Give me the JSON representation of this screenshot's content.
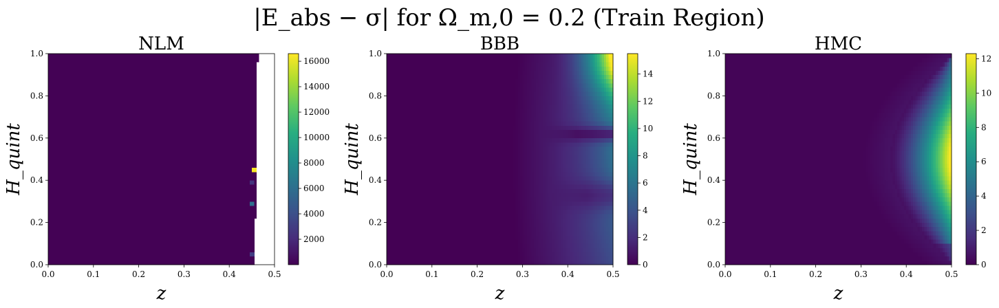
{
  "figure": {
    "title": "|E_abs − σ| for Ω_m,0 = 0.2 (Train Region)",
    "colormap": "viridis",
    "colormap_stops": [
      "#440154",
      "#3b528b",
      "#21918c",
      "#5ec962",
      "#fde725"
    ]
  },
  "chart_data": [
    {
      "type": "heatmap",
      "title": "NLM",
      "xlabel": "z",
      "ylabel": "H_quint",
      "xlim": [
        0,
        0.5
      ],
      "ylim": [
        0,
        1.0
      ],
      "xticks": [
        "0.0",
        "0.1",
        "0.2",
        "0.3",
        "0.4",
        "0.5"
      ],
      "yticks": [
        "0.0",
        "0.2",
        "0.4",
        "0.6",
        "0.8",
        "1.0"
      ],
      "colorbar": {
        "range": [
          0,
          16600
        ],
        "ticks": [
          2000,
          4000,
          6000,
          8000,
          10000,
          12000,
          14000,
          16000
        ]
      },
      "pattern": "near-zero everywhere for z < 0.45; masked (blank) for z > ~0.46 above H_quint 0.2 and for z > 0.455 below; isolated hot cells",
      "hot_cells": [
        {
          "z": 0.454,
          "H_quint": 0.45,
          "value": 16500
        },
        {
          "z": 0.451,
          "H_quint": 0.285,
          "value": 6000
        },
        {
          "z": 0.449,
          "H_quint": 0.045,
          "value": 3000
        },
        {
          "z": 0.449,
          "H_quint": 0.385,
          "value": 2500
        }
      ]
    },
    {
      "type": "heatmap",
      "title": "BBB",
      "xlabel": "z",
      "ylabel": "H_quint",
      "xlim": [
        0,
        0.5
      ],
      "ylim": [
        0,
        1.0
      ],
      "xticks": [
        "0.0",
        "0.1",
        "0.2",
        "0.3",
        "0.4",
        "0.5"
      ],
      "yticks": [
        "0.0",
        "0.2",
        "0.4",
        "0.6",
        "0.8",
        "1.0"
      ],
      "colorbar": {
        "range": [
          0,
          15.5
        ],
        "ticks": [
          0,
          2,
          4,
          6,
          8,
          10,
          12,
          14
        ]
      },
      "pattern": "error grows with z; maximum ~15 at z=0.5, H_quint=1.0; dark bands near H_quint 0.62 and 0.33"
    },
    {
      "type": "heatmap",
      "title": "HMC",
      "xlabel": "z",
      "ylabel": "H_quint",
      "xlim": [
        0,
        0.5
      ],
      "ylim": [
        0,
        1.0
      ],
      "xticks": [
        "0.0",
        "0.1",
        "0.2",
        "0.3",
        "0.4",
        "0.5"
      ],
      "yticks": [
        "0.0",
        "0.2",
        "0.4",
        "0.6",
        "0.8",
        "1.0"
      ],
      "colorbar": {
        "range": [
          0,
          12.3
        ],
        "ticks": [
          0,
          2,
          4,
          6,
          8,
          10,
          12
        ]
      },
      "pattern": "crescent-shaped band of high error at z > 0.38; maximum ~12 at z=0.5, H_quint=0.5"
    }
  ]
}
